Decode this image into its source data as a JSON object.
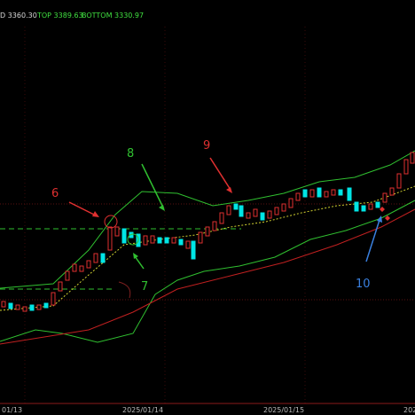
{
  "header": {
    "mid": "D 3360.30",
    "top": "TOP 3389.63",
    "bottom": "BOTTOM 3330.97"
  },
  "x_labels": [
    "01/13",
    "2025/01/14",
    "2025/01/15",
    "202"
  ],
  "annotations": [
    "6",
    "8",
    "9",
    "7",
    "10"
  ]
}
